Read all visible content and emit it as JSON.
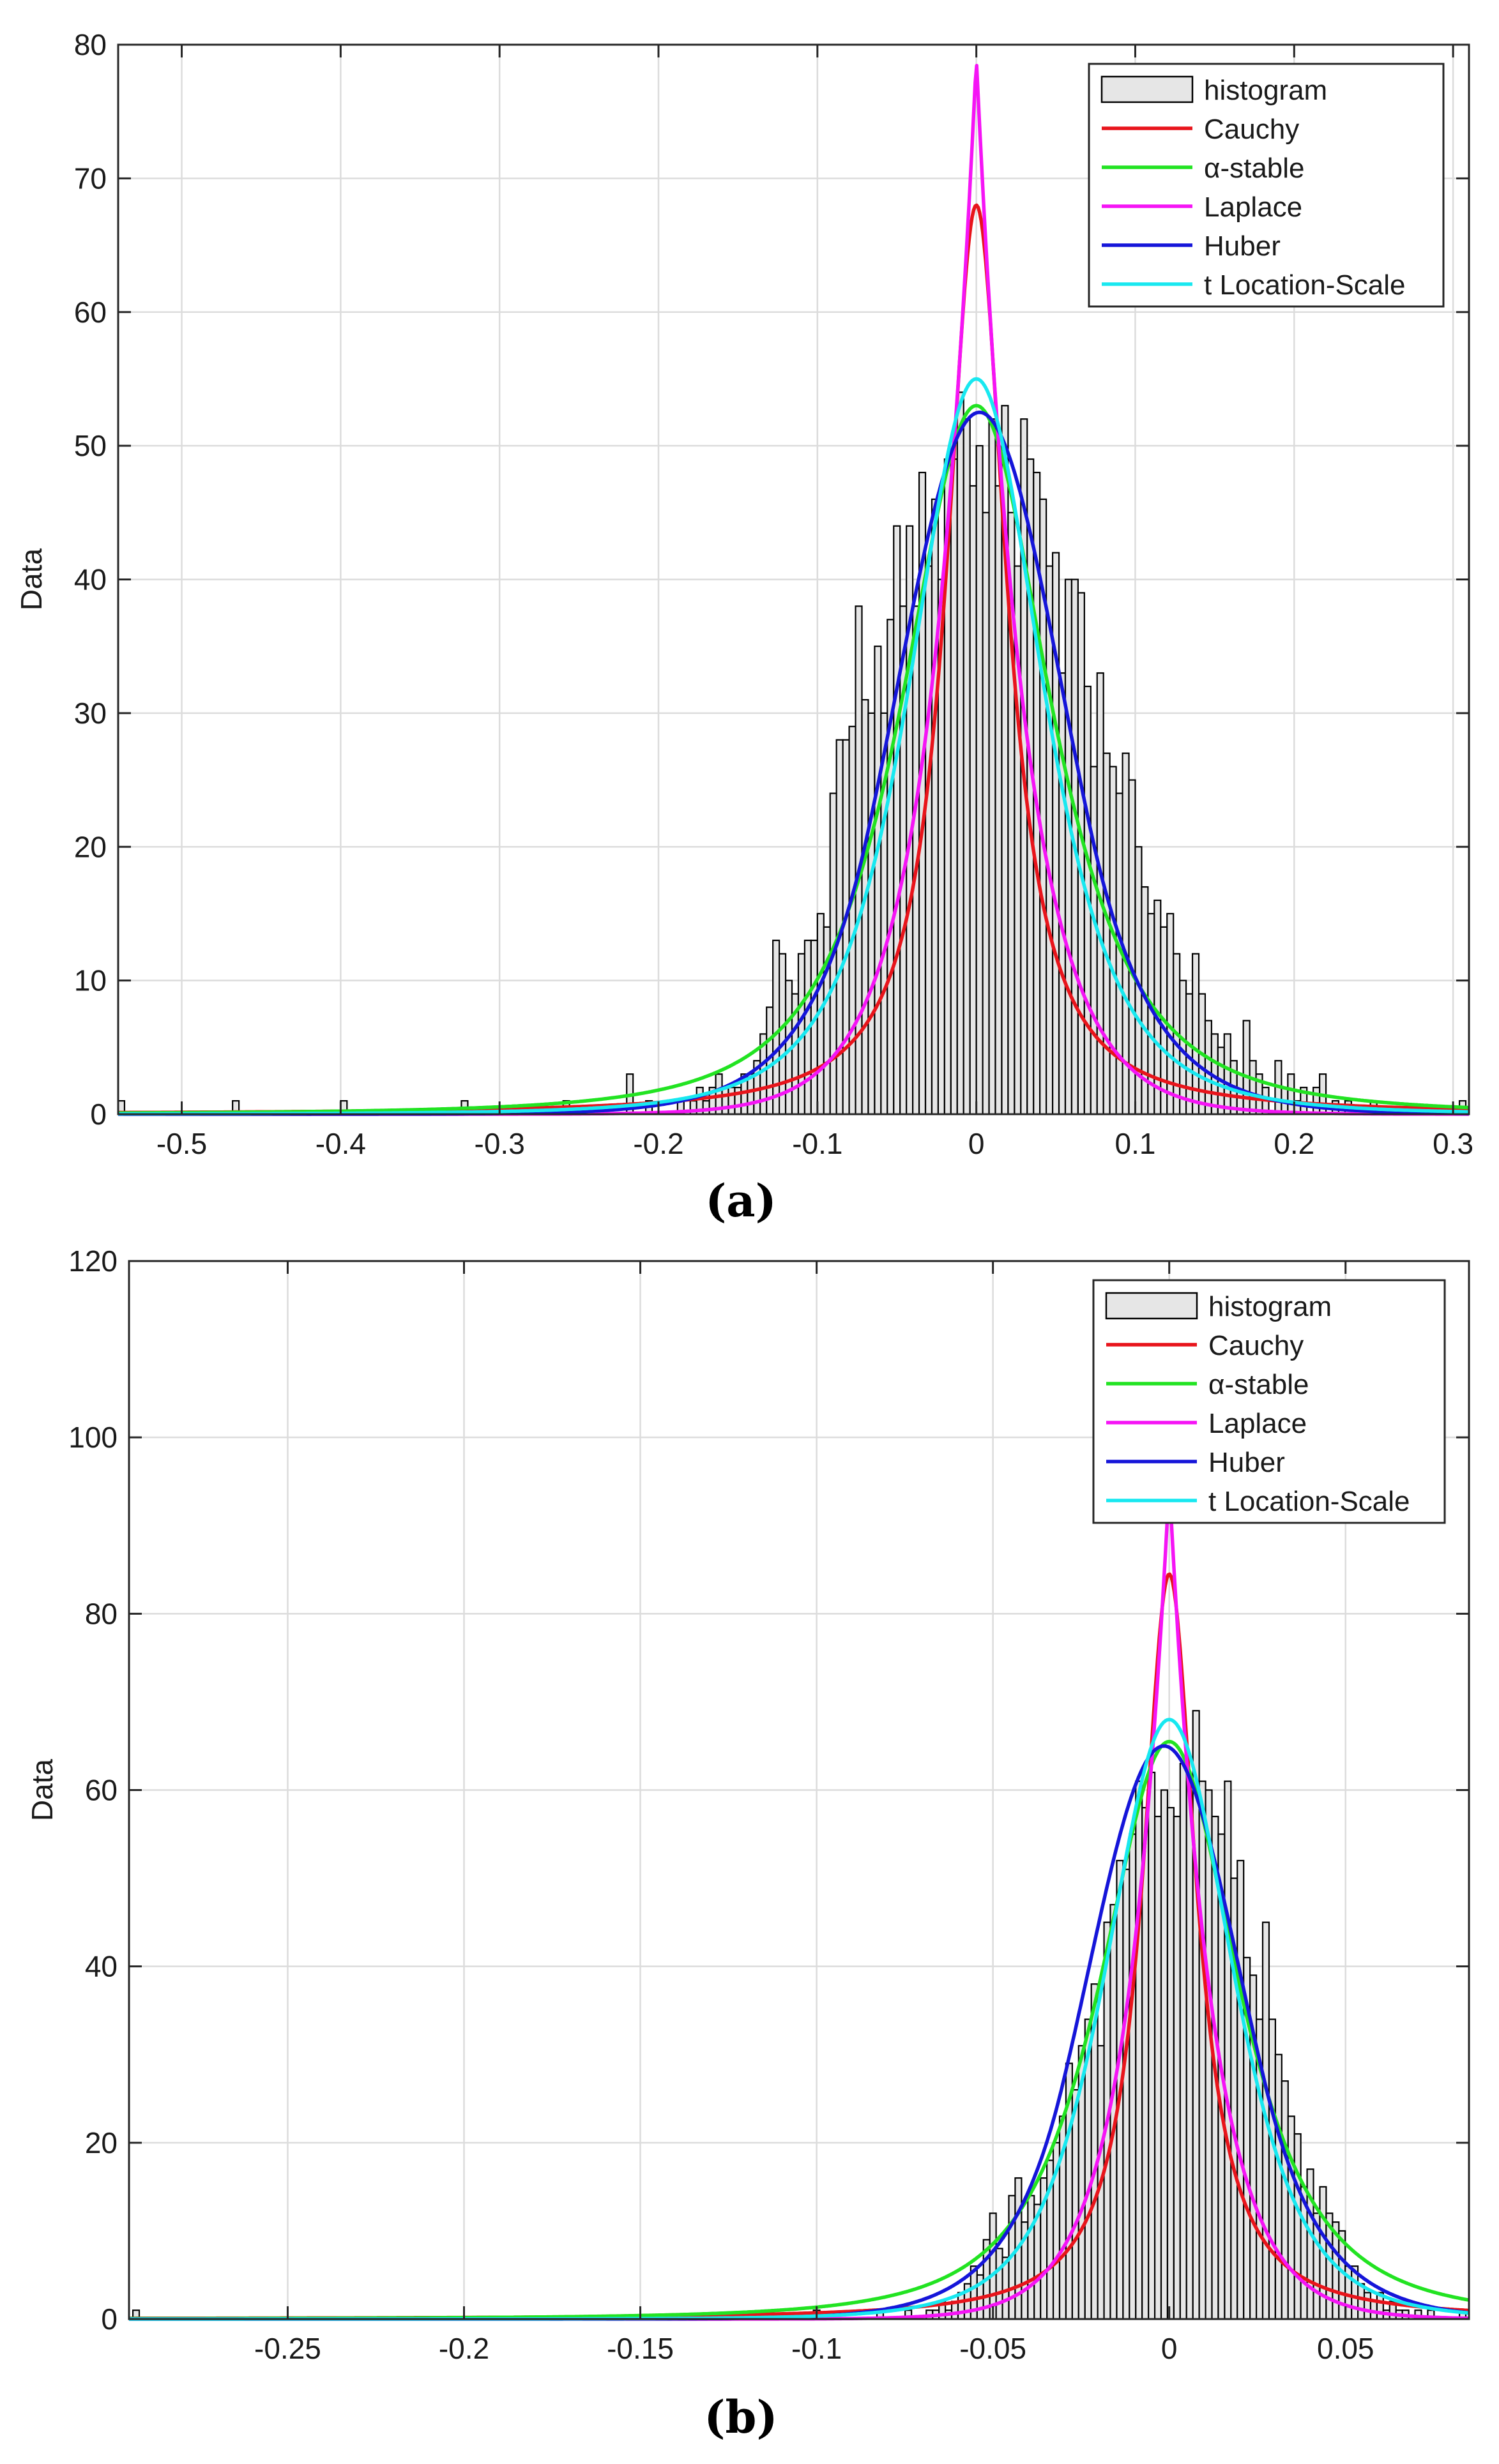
{
  "legend_entries": [
    "histogram",
    "Cauchy",
    "α-stable",
    "Laplace",
    "Huber",
    "t Location-Scale"
  ],
  "colors": {
    "histogram": "#e6e6e6",
    "Cauchy": "#e8141b",
    "α-stable": "#22e322",
    "Laplace": "#f514f5",
    "Huber": "#1515d9",
    "t Location-Scale": "#18e8f0",
    "grid": "#dcdcdc",
    "axis": "#262626"
  },
  "chart_data": [
    {
      "type": "bar",
      "panel_label": "(a)",
      "ylabel": "Data",
      "xlabel": "",
      "xlim": [
        -0.54,
        0.31
      ],
      "ylim": [
        0,
        80
      ],
      "xticks": [
        "-0.5",
        "-0.4",
        "-0.3",
        "-0.2",
        "-0.1",
        "0",
        "0.1",
        "0.2",
        "0.3"
      ],
      "xtick_values": [
        -0.5,
        -0.4,
        -0.3,
        -0.2,
        -0.1,
        0,
        0.1,
        0.2,
        0.3
      ],
      "yticks": [
        "0",
        "10",
        "20",
        "30",
        "40",
        "50",
        "60",
        "70",
        "80"
      ],
      "ytick_values": [
        0,
        10,
        20,
        30,
        40,
        50,
        60,
        70,
        80
      ],
      "grid": true,
      "legend_position": "top-right",
      "histogram": {
        "bin_width": 0.004,
        "bins": [
          [
            -0.538,
            1
          ],
          [
            -0.466,
            1
          ],
          [
            -0.398,
            1
          ],
          [
            -0.322,
            1
          ],
          [
            -0.258,
            1
          ],
          [
            -0.218,
            3
          ],
          [
            -0.206,
            1
          ],
          [
            -0.186,
            1
          ],
          [
            -0.178,
            1
          ],
          [
            -0.174,
            2
          ],
          [
            -0.17,
            1
          ],
          [
            -0.166,
            2
          ],
          [
            -0.162,
            3
          ],
          [
            -0.158,
            2
          ],
          [
            -0.154,
            2
          ],
          [
            -0.15,
            2
          ],
          [
            -0.146,
            3
          ],
          [
            -0.142,
            3
          ],
          [
            -0.138,
            4
          ],
          [
            -0.134,
            6
          ],
          [
            -0.13,
            8
          ],
          [
            -0.126,
            13
          ],
          [
            -0.122,
            12
          ],
          [
            -0.118,
            10
          ],
          [
            -0.114,
            9
          ],
          [
            -0.11,
            12
          ],
          [
            -0.106,
            13
          ],
          [
            -0.102,
            13
          ],
          [
            -0.098,
            15
          ],
          [
            -0.094,
            14
          ],
          [
            -0.09,
            24
          ],
          [
            -0.086,
            28
          ],
          [
            -0.082,
            28
          ],
          [
            -0.078,
            29
          ],
          [
            -0.074,
            38
          ],
          [
            -0.07,
            31
          ],
          [
            -0.066,
            30
          ],
          [
            -0.062,
            35
          ],
          [
            -0.058,
            30
          ],
          [
            -0.054,
            37
          ],
          [
            -0.05,
            44
          ],
          [
            -0.046,
            38
          ],
          [
            -0.042,
            44
          ],
          [
            -0.038,
            38
          ],
          [
            -0.034,
            48
          ],
          [
            -0.03,
            41
          ],
          [
            -0.026,
            46
          ],
          [
            -0.022,
            40
          ],
          [
            -0.018,
            49
          ],
          [
            -0.014,
            49
          ],
          [
            -0.01,
            54
          ],
          [
            -0.006,
            52
          ],
          [
            -0.002,
            47
          ],
          [
            0.002,
            50
          ],
          [
            0.006,
            45
          ],
          [
            0.01,
            52
          ],
          [
            0.014,
            47
          ],
          [
            0.018,
            53
          ],
          [
            0.022,
            45
          ],
          [
            0.026,
            41
          ],
          [
            0.03,
            52
          ],
          [
            0.034,
            49
          ],
          [
            0.038,
            48
          ],
          [
            0.042,
            46
          ],
          [
            0.046,
            41
          ],
          [
            0.05,
            42
          ],
          [
            0.054,
            33
          ],
          [
            0.058,
            40
          ],
          [
            0.062,
            40
          ],
          [
            0.066,
            39
          ],
          [
            0.07,
            32
          ],
          [
            0.074,
            26
          ],
          [
            0.078,
            33
          ],
          [
            0.082,
            27
          ],
          [
            0.086,
            26
          ],
          [
            0.09,
            24
          ],
          [
            0.094,
            27
          ],
          [
            0.098,
            25
          ],
          [
            0.102,
            20
          ],
          [
            0.106,
            17
          ],
          [
            0.11,
            15
          ],
          [
            0.114,
            16
          ],
          [
            0.118,
            14
          ],
          [
            0.122,
            15
          ],
          [
            0.126,
            12
          ],
          [
            0.13,
            10
          ],
          [
            0.134,
            9
          ],
          [
            0.138,
            12
          ],
          [
            0.142,
            9
          ],
          [
            0.146,
            7
          ],
          [
            0.15,
            6
          ],
          [
            0.154,
            5
          ],
          [
            0.158,
            6
          ],
          [
            0.162,
            4
          ],
          [
            0.166,
            3
          ],
          [
            0.17,
            7
          ],
          [
            0.174,
            4
          ],
          [
            0.178,
            3
          ],
          [
            0.182,
            2
          ],
          [
            0.19,
            4
          ],
          [
            0.194,
            2
          ],
          [
            0.198,
            3
          ],
          [
            0.202,
            1
          ],
          [
            0.206,
            2
          ],
          [
            0.214,
            2
          ],
          [
            0.218,
            3
          ],
          [
            0.226,
            1
          ],
          [
            0.234,
            1
          ],
          [
            0.25,
            1
          ],
          [
            0.306,
            1
          ]
        ]
      },
      "series": [
        {
          "name": "Cauchy",
          "model": "cauchy",
          "center": 0,
          "peak": 68,
          "scale": 0.023
        },
        {
          "name": "α-stable",
          "model": "stable_approx",
          "center": 0,
          "peak": 53,
          "scale": 0.05
        },
        {
          "name": "Laplace",
          "model": "laplace",
          "center": 0,
          "peak": 79,
          "scale": 0.031
        },
        {
          "name": "Huber",
          "model": "huber",
          "center": 0.002,
          "peak": 52.5,
          "scale": 0.052
        },
        {
          "name": "t Location-Scale",
          "model": "student_t",
          "center": 0,
          "peak": 55,
          "scale": 0.044,
          "nu": 3
        }
      ]
    },
    {
      "type": "bar",
      "panel_label": "(b)",
      "ylabel": "Data",
      "xlabel": "",
      "xlim": [
        -0.295,
        0.085
      ],
      "ylim": [
        0,
        120
      ],
      "xticks": [
        "-0.25",
        "-0.2",
        "-0.15",
        "-0.1",
        "-0.05",
        "0",
        "0.05"
      ],
      "xtick_values": [
        -0.25,
        -0.2,
        -0.15,
        -0.1,
        -0.05,
        0,
        0.05
      ],
      "yticks": [
        "0",
        "20",
        "40",
        "60",
        "80",
        "100",
        "120"
      ],
      "ytick_values": [
        0,
        20,
        40,
        60,
        80,
        100,
        120
      ],
      "grid": true,
      "legend_position": "top-right",
      "histogram": {
        "bin_width": 0.0018,
        "bins": [
          [
            -0.293,
            1
          ],
          [
            -0.1,
            1
          ],
          [
            -0.082,
            1
          ],
          [
            -0.074,
            1
          ],
          [
            -0.068,
            1
          ],
          [
            -0.0662,
            1
          ],
          [
            -0.0644,
            2
          ],
          [
            -0.0626,
            1
          ],
          [
            -0.0608,
            2
          ],
          [
            -0.059,
            3
          ],
          [
            -0.0572,
            4
          ],
          [
            -0.0554,
            6
          ],
          [
            -0.0536,
            5
          ],
          [
            -0.0518,
            9
          ],
          [
            -0.05,
            12
          ],
          [
            -0.0482,
            8
          ],
          [
            -0.0464,
            7
          ],
          [
            -0.0446,
            14
          ],
          [
            -0.0428,
            16
          ],
          [
            -0.041,
            11
          ],
          [
            -0.0392,
            14
          ],
          [
            -0.0374,
            13
          ],
          [
            -0.0356,
            16
          ],
          [
            -0.0338,
            18
          ],
          [
            -0.032,
            20
          ],
          [
            -0.0302,
            23
          ],
          [
            -0.0284,
            29
          ],
          [
            -0.0266,
            26
          ],
          [
            -0.0248,
            31
          ],
          [
            -0.023,
            34
          ],
          [
            -0.0212,
            38
          ],
          [
            -0.0194,
            31
          ],
          [
            -0.0176,
            45
          ],
          [
            -0.0158,
            47
          ],
          [
            -0.014,
            52
          ],
          [
            -0.0122,
            51
          ],
          [
            -0.0104,
            55
          ],
          [
            -0.0086,
            61
          ],
          [
            -0.0068,
            58
          ],
          [
            -0.005,
            62
          ],
          [
            -0.0032,
            57
          ],
          [
            -0.0014,
            60
          ],
          [
            0.0004,
            58
          ],
          [
            0.0022,
            57
          ],
          [
            0.004,
            63
          ],
          [
            0.0058,
            61
          ],
          [
            0.0076,
            69
          ],
          [
            0.0094,
            61
          ],
          [
            0.0112,
            60
          ],
          [
            0.013,
            57
          ],
          [
            0.0148,
            55
          ],
          [
            0.0166,
            61
          ],
          [
            0.0184,
            50
          ],
          [
            0.0202,
            52
          ],
          [
            0.022,
            41
          ],
          [
            0.0238,
            39
          ],
          [
            0.0256,
            34
          ],
          [
            0.0274,
            45
          ],
          [
            0.0292,
            34
          ],
          [
            0.031,
            30
          ],
          [
            0.0328,
            27
          ],
          [
            0.0346,
            23
          ],
          [
            0.0364,
            21
          ],
          [
            0.0382,
            15
          ],
          [
            0.04,
            17
          ],
          [
            0.0418,
            12
          ],
          [
            0.0436,
            15
          ],
          [
            0.0454,
            12
          ],
          [
            0.0472,
            11
          ],
          [
            0.049,
            10
          ],
          [
            0.0508,
            6
          ],
          [
            0.0526,
            6
          ],
          [
            0.0544,
            4
          ],
          [
            0.0562,
            3
          ],
          [
            0.058,
            2
          ],
          [
            0.0598,
            3
          ],
          [
            0.0616,
            1
          ],
          [
            0.0634,
            2
          ],
          [
            0.0652,
            1
          ],
          [
            0.067,
            1
          ],
          [
            0.0706,
            1
          ],
          [
            0.0742,
            1
          ],
          [
            0.0832,
            1
          ]
        ]
      },
      "series": [
        {
          "name": "Cauchy",
          "model": "cauchy",
          "center": 0,
          "peak": 84.5,
          "scale": 0.0092
        },
        {
          "name": "α-stable",
          "model": "stable_approx",
          "center": 0,
          "peak": 65.5,
          "scale": 0.021
        },
        {
          "name": "Laplace",
          "model": "laplace",
          "center": 0,
          "peak": 95,
          "scale": 0.0122
        },
        {
          "name": "Huber",
          "model": "huber",
          "center": -0.0015,
          "peak": 65,
          "scale": 0.0215
        },
        {
          "name": "t Location-Scale",
          "model": "student_t",
          "center": 0,
          "peak": 68,
          "scale": 0.0185,
          "nu": 4
        }
      ]
    }
  ]
}
